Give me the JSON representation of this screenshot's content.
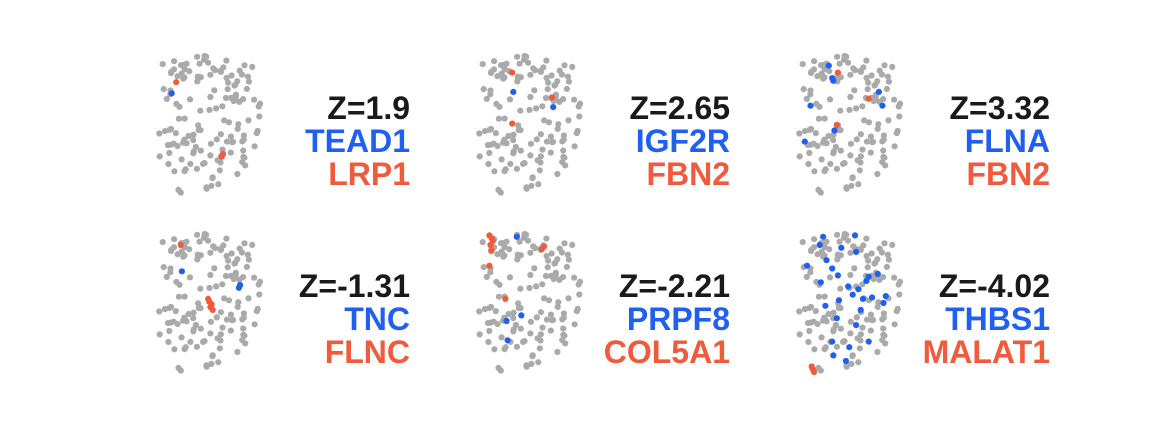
{
  "colors": {
    "background_points": "#aaaaaa",
    "gene1": "#1f5ff2",
    "gene2": "#f15a3a",
    "z_text": "#1a1a1a"
  },
  "chart_data": [
    {
      "type": "scatter",
      "z_label": "Z=1.9",
      "gene1": "TEAD1",
      "gene2": "LRP1",
      "z": 1.9,
      "gene1_points": [
        [
          0.12,
          0.27
        ]
      ],
      "gene2_points": [
        [
          0.16,
          0.19
        ],
        [
          0.56,
          0.73
        ],
        [
          0.57,
          0.71
        ]
      ]
    },
    {
      "type": "scatter",
      "z_label": "Z=2.65",
      "gene1": "IGF2R",
      "gene2": "FBN2",
      "z": 2.65,
      "gene1_points": [
        [
          0.31,
          0.26
        ],
        [
          0.66,
          0.37
        ]
      ],
      "gene2_points": [
        [
          0.3,
          0.12
        ],
        [
          0.65,
          0.3
        ],
        [
          0.3,
          0.49
        ]
      ]
    },
    {
      "type": "scatter",
      "z_label": "Z=3.32",
      "gene1": "FLNA",
      "gene2": "FBN2",
      "z": 3.32,
      "gene1_points": [
        [
          0.27,
          0.07
        ],
        [
          0.3,
          0.16
        ],
        [
          0.31,
          0.18
        ],
        [
          0.11,
          0.36
        ],
        [
          0.71,
          0.26
        ],
        [
          0.74,
          0.36
        ],
        [
          0.32,
          0.54
        ],
        [
          0.06,
          0.62
        ]
      ],
      "gene2_points": [
        [
          0.35,
          0.12
        ],
        [
          0.62,
          0.31
        ],
        [
          0.34,
          0.5
        ]
      ]
    },
    {
      "type": "scatter",
      "z_label": "Z=-1.31",
      "gene1": "TNC",
      "gene2": "FLNC",
      "z": -1.31,
      "gene1_points": [
        [
          0.21,
          0.27
        ],
        [
          0.72,
          0.37
        ],
        [
          0.71,
          0.39
        ]
      ],
      "gene2_points": [
        [
          0.2,
          0.08
        ],
        [
          0.45,
          0.49
        ],
        [
          0.47,
          0.51
        ],
        [
          0.46,
          0.53
        ],
        [
          0.48,
          0.55
        ],
        [
          0.44,
          0.47
        ]
      ]
    },
    {
      "type": "scatter",
      "z_label": "Z=-2.21",
      "gene1": "PRPF8",
      "gene2": "COL5A1",
      "z": -2.21,
      "gene1_points": [
        [
          0.34,
          0.02
        ],
        [
          0.25,
          0.63
        ],
        [
          0.38,
          0.59
        ],
        [
          0.26,
          0.77
        ]
      ],
      "gene2_points": [
        [
          0.1,
          0.01
        ],
        [
          0.12,
          0.03
        ],
        [
          0.13,
          0.05
        ],
        [
          0.11,
          0.08
        ],
        [
          0.12,
          0.12
        ],
        [
          0.56,
          0.11
        ],
        [
          0.58,
          0.09
        ],
        [
          0.1,
          0.23
        ],
        [
          0.24,
          0.47
        ]
      ]
    },
    {
      "type": "scatter",
      "z_label": "Z=-4.02",
      "gene1": "THBS1",
      "gene2": "MALAT1",
      "z": -4.02,
      "gene1_points": [
        [
          0.22,
          0.02
        ],
        [
          0.19,
          0.08
        ],
        [
          0.5,
          0.01
        ],
        [
          0.38,
          0.1
        ],
        [
          0.51,
          0.13
        ],
        [
          0.08,
          0.23
        ],
        [
          0.25,
          0.19
        ],
        [
          0.3,
          0.25
        ],
        [
          0.2,
          0.35
        ],
        [
          0.35,
          0.3
        ],
        [
          0.44,
          0.38
        ],
        [
          0.62,
          0.31
        ],
        [
          0.7,
          0.29
        ],
        [
          0.65,
          0.46
        ],
        [
          0.48,
          0.44
        ],
        [
          0.53,
          0.4
        ],
        [
          0.57,
          0.47
        ],
        [
          0.75,
          0.5
        ],
        [
          0.34,
          0.61
        ],
        [
          0.51,
          0.66
        ],
        [
          0.45,
          0.82
        ],
        [
          0.62,
          0.78
        ],
        [
          0.3,
          0.78
        ],
        [
          0.42,
          0.92
        ],
        [
          0.24,
          0.52
        ],
        [
          0.77,
          0.45
        ],
        [
          0.6,
          0.34
        ],
        [
          0.36,
          0.48
        ],
        [
          0.31,
          0.88
        ],
        [
          0.55,
          0.55
        ]
      ],
      "gene2_points": [
        [
          0.13,
          0.98
        ],
        [
          0.14,
          1.0
        ],
        [
          0.12,
          0.96
        ]
      ]
    }
  ]
}
